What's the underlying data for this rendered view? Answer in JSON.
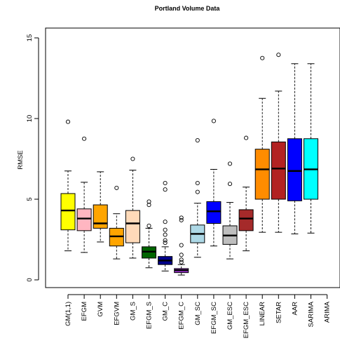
{
  "chart_data": {
    "type": "box",
    "title": "Portland Volume Data",
    "xlabel": "",
    "ylabel": "RMSE",
    "ylim": [
      -0.5,
      15.6
    ],
    "yticks": [
      0,
      5,
      10,
      15
    ],
    "grid": false,
    "legend": "none",
    "categories": [
      "GM(1,1)",
      "EFGM",
      "GVM",
      "EFGVM",
      "GM_S",
      "EFGM_S",
      "GM_C",
      "EFGM_C",
      "GM_SC",
      "EFGM_SC",
      "GM_ESC",
      "EFGM_ESC",
      "LINEAR",
      "SETAR",
      "AAR",
      "SARIMA",
      "ARIMA"
    ],
    "series": [
      {
        "category": "GM(1,1)",
        "color": "#ffff00",
        "whisker_low": 1.8,
        "q1": 3.1,
        "median": 4.3,
        "q3": 5.35,
        "whisker_high": 6.75,
        "outliers": [
          9.8
        ]
      },
      {
        "category": "EFGM",
        "color": "#ffb6c1",
        "whisker_low": 1.7,
        "q1": 3.05,
        "median": 3.8,
        "q3": 4.4,
        "whisker_high": 6.05,
        "outliers": [
          8.75
        ]
      },
      {
        "category": "GVM",
        "color": "#ffa500",
        "whisker_low": 2.35,
        "q1": 3.2,
        "median": 3.5,
        "q3": 4.65,
        "whisker_high": 6.7,
        "outliers": []
      },
      {
        "category": "EFGVM",
        "color": "#ffa500",
        "whisker_low": 1.3,
        "q1": 2.1,
        "median": 2.7,
        "q3": 3.2,
        "whisker_high": 4.1,
        "outliers": [
          5.7
        ]
      },
      {
        "category": "GM_S",
        "color": "#ffdab9",
        "whisker_low": 1.35,
        "q1": 2.3,
        "median": 3.5,
        "q3": 4.3,
        "whisker_high": 6.8,
        "outliers": [
          7.5
        ]
      },
      {
        "category": "EFGM_S",
        "color": "#006400",
        "whisker_low": 0.75,
        "q1": 1.35,
        "median": 1.75,
        "q3": 2.05,
        "whisker_high": 3.2,
        "outliers": [
          4.65,
          4.85,
          3.35
        ]
      },
      {
        "category": "GM_C",
        "color": "#00008b",
        "whisker_low": 0.55,
        "q1": 0.95,
        "median": 1.2,
        "q3": 1.45,
        "whisker_high": 2.05,
        "outliers": [
          2.3,
          2.45,
          2.8,
          3.1,
          3.6,
          5.6,
          6.0
        ]
      },
      {
        "category": "EFGM_C",
        "color": "#9932cc",
        "whisker_low": 0.3,
        "q1": 0.45,
        "median": 0.6,
        "q3": 0.7,
        "whisker_high": 0.95,
        "outliers": [
          1.1,
          1.25,
          1.55,
          2.15,
          3.7,
          3.85
        ]
      },
      {
        "category": "GM_SC",
        "color": "#add8e6",
        "whisker_low": 1.4,
        "q1": 2.3,
        "median": 2.85,
        "q3": 3.4,
        "whisker_high": 4.75,
        "outliers": [
          5.45,
          6.0,
          8.65
        ]
      },
      {
        "category": "EFGM_SC",
        "color": "#0000ff",
        "whisker_low": 2.1,
        "q1": 3.5,
        "median": 4.25,
        "q3": 4.85,
        "whisker_high": 6.85,
        "outliers": [
          9.85
        ]
      },
      {
        "category": "GM_ESC",
        "color": "#bebebe",
        "whisker_low": 1.3,
        "q1": 2.2,
        "median": 2.75,
        "q3": 3.35,
        "whisker_high": 4.8,
        "outliers": [
          5.95,
          7.2
        ]
      },
      {
        "category": "EFGM_ESC",
        "color": "#a52a2a",
        "whisker_low": 1.8,
        "q1": 3.05,
        "median": 3.8,
        "q3": 4.35,
        "whisker_high": 5.75,
        "outliers": [
          8.8
        ]
      },
      {
        "category": "LINEAR",
        "color": "#ff8c00",
        "whisker_low": 2.95,
        "q1": 5.0,
        "median": 6.85,
        "q3": 8.1,
        "whisker_high": 11.25,
        "outliers": [
          13.75
        ]
      },
      {
        "category": "SETAR",
        "color": "#b22222",
        "whisker_low": 2.95,
        "q1": 5.0,
        "median": 6.9,
        "q3": 8.55,
        "whisker_high": 11.7,
        "outliers": [
          13.95
        ]
      },
      {
        "category": "AAR",
        "color": "#0000ff",
        "whisker_low": 2.85,
        "q1": 4.9,
        "median": 6.75,
        "q3": 8.75,
        "whisker_high": 13.4,
        "outliers": []
      },
      {
        "category": "SARIMA",
        "color": "#00ffff",
        "whisker_low": 2.9,
        "q1": 5.0,
        "median": 6.85,
        "q3": 8.75,
        "whisker_high": 13.4,
        "outliers": []
      },
      {
        "category": "ARIMA",
        "color": "",
        "whisker_low": null,
        "q1": null,
        "median": null,
        "q3": null,
        "whisker_high": null,
        "outliers": []
      }
    ]
  }
}
